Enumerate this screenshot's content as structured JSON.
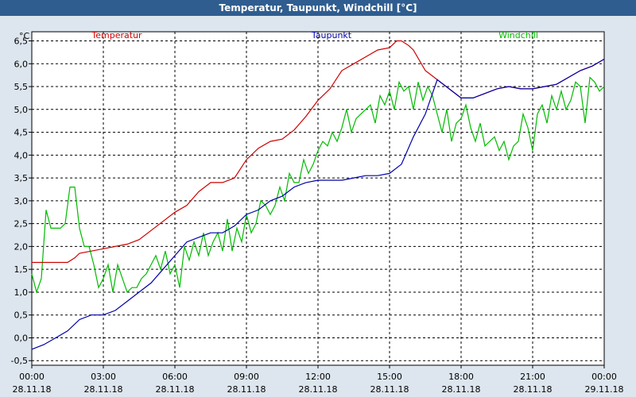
{
  "window": {
    "title": "Temperatur, Taupunkt, Windchill [°C]"
  },
  "chart_data": {
    "type": "line",
    "title": "Temperatur, Taupunkt, Windchill [°C]",
    "ylabel": "°C",
    "xlabel": "",
    "ylim": [
      -0.6,
      6.7
    ],
    "xlim": [
      0,
      24
    ],
    "grid": true,
    "legend": "top",
    "yticks": [
      "-0,5",
      "0,0",
      "0,5",
      "1,0",
      "1,5",
      "2,0",
      "2,5",
      "3,0",
      "3,5",
      "4,0",
      "4,5",
      "5,0",
      "5,5",
      "6,0",
      "6,5"
    ],
    "ytick_values": [
      -0.5,
      0,
      0.5,
      1,
      1.5,
      2,
      2.5,
      3,
      3.5,
      4,
      4.5,
      5,
      5.5,
      6,
      6.5
    ],
    "xticks": [
      {
        "time": "00:00",
        "date": "28.11.18",
        "hour": 0
      },
      {
        "time": "03:00",
        "date": "28.11.18",
        "hour": 3
      },
      {
        "time": "06:00",
        "date": "28.11.18",
        "hour": 6
      },
      {
        "time": "09:00",
        "date": "28.11.18",
        "hour": 9
      },
      {
        "time": "12:00",
        "date": "28.11.18",
        "hour": 12
      },
      {
        "time": "15:00",
        "date": "28.11.18",
        "hour": 15
      },
      {
        "time": "18:00",
        "date": "28.11.18",
        "hour": 18
      },
      {
        "time": "21:00",
        "date": "28.11.18",
        "hour": 21
      },
      {
        "time": "00:00",
        "date": "29.11.18",
        "hour": 24
      }
    ],
    "series": [
      {
        "name": "Temperatur",
        "color": "#cc0000",
        "x": [
          0,
          1,
          1.5,
          1.8,
          2,
          2.5,
          3,
          3.5,
          4,
          4.5,
          5,
          5.5,
          6,
          6.5,
          7,
          7.5,
          8,
          8.5,
          9,
          9.5,
          10,
          10.5,
          11,
          11.5,
          12,
          12.5,
          13,
          13.5,
          14,
          14.5,
          15,
          15.3,
          15.5,
          15.8,
          16,
          16.5,
          17,
          17.5,
          18,
          18.5,
          19,
          19.5,
          20,
          20.5,
          21,
          21.5,
          22,
          22.5,
          23,
          23.5,
          24
        ],
        "values": [
          1.65,
          1.65,
          1.65,
          1.75,
          1.85,
          1.9,
          1.95,
          2.0,
          2.05,
          2.15,
          2.35,
          2.55,
          2.75,
          2.9,
          3.2,
          3.4,
          3.4,
          3.5,
          3.9,
          4.15,
          4.3,
          4.35,
          4.55,
          4.85,
          5.2,
          5.45,
          5.85,
          6.0,
          6.15,
          6.3,
          6.35,
          6.5,
          6.5,
          6.4,
          6.3,
          5.85,
          5.65,
          5.45,
          5.25,
          5.25,
          5.35,
          5.45,
          5.5,
          5.45,
          5.45,
          5.5,
          5.55,
          5.7,
          5.85,
          5.95,
          6.1
        ]
      },
      {
        "name": "Taupunkt",
        "color": "#0000aa",
        "x": [
          0,
          0.5,
          1,
          1.5,
          2,
          2.5,
          3,
          3.5,
          4,
          4.5,
          5,
          5.5,
          6,
          6.5,
          7,
          7.5,
          8,
          8.5,
          9,
          9.5,
          10,
          10.5,
          11,
          11.5,
          12,
          12.5,
          13,
          13.5,
          14,
          14.5,
          15,
          15.5,
          16,
          16.5,
          17,
          17.5,
          18,
          18.5,
          19,
          19.5,
          20,
          20.5,
          21,
          21.5,
          22,
          22.5,
          23,
          23.5,
          24
        ],
        "values": [
          -0.25,
          -0.15,
          0.0,
          0.15,
          0.4,
          0.5,
          0.5,
          0.6,
          0.8,
          1.0,
          1.2,
          1.5,
          1.8,
          2.1,
          2.2,
          2.3,
          2.3,
          2.45,
          2.7,
          2.8,
          3.0,
          3.1,
          3.3,
          3.4,
          3.45,
          3.45,
          3.45,
          3.5,
          3.55,
          3.55,
          3.6,
          3.8,
          4.4,
          4.9,
          5.65,
          5.45,
          5.25,
          5.25,
          5.35,
          5.45,
          5.5,
          5.45,
          5.45,
          5.5,
          5.55,
          5.7,
          5.85,
          5.95,
          6.1
        ]
      },
      {
        "name": "Windchill",
        "color": "#00bb00",
        "x": [
          0,
          0.2,
          0.4,
          0.6,
          0.8,
          1,
          1.2,
          1.4,
          1.6,
          1.8,
          2,
          2.2,
          2.4,
          2.6,
          2.8,
          3,
          3.2,
          3.4,
          3.6,
          3.8,
          4,
          4.2,
          4.4,
          4.6,
          4.8,
          5,
          5.2,
          5.4,
          5.6,
          5.8,
          6,
          6.2,
          6.4,
          6.6,
          6.8,
          7,
          7.2,
          7.4,
          7.6,
          7.8,
          8,
          8.2,
          8.4,
          8.6,
          8.8,
          9,
          9.2,
          9.4,
          9.6,
          9.8,
          10,
          10.2,
          10.4,
          10.6,
          10.8,
          11,
          11.2,
          11.4,
          11.6,
          11.8,
          12,
          12.2,
          12.4,
          12.6,
          12.8,
          13,
          13.2,
          13.4,
          13.6,
          13.8,
          14,
          14.2,
          14.4,
          14.6,
          14.8,
          15,
          15.2,
          15.4,
          15.6,
          15.8,
          16,
          16.2,
          16.4,
          16.6,
          16.8,
          17,
          17.2,
          17.4,
          17.6,
          17.8,
          18,
          18.2,
          18.4,
          18.6,
          18.8,
          19,
          19.2,
          19.4,
          19.6,
          19.8,
          20,
          20.2,
          20.4,
          20.6,
          20.8,
          21,
          21.2,
          21.4,
          21.6,
          21.8,
          22,
          22.2,
          22.4,
          22.6,
          22.8,
          23,
          23.2,
          23.4,
          23.6,
          23.8,
          24
        ],
        "values": [
          1.4,
          1.0,
          1.3,
          2.8,
          2.4,
          2.4,
          2.4,
          2.5,
          3.3,
          3.3,
          2.4,
          2.0,
          2.0,
          1.6,
          1.1,
          1.3,
          1.6,
          1.0,
          1.6,
          1.3,
          1.0,
          1.1,
          1.1,
          1.3,
          1.4,
          1.6,
          1.8,
          1.5,
          1.9,
          1.4,
          1.6,
          1.1,
          2.0,
          1.7,
          2.1,
          1.8,
          2.3,
          1.8,
          2.1,
          2.3,
          1.9,
          2.6,
          1.9,
          2.4,
          2.1,
          2.7,
          2.3,
          2.5,
          3.0,
          2.9,
          2.7,
          2.9,
          3.3,
          3.0,
          3.6,
          3.4,
          3.4,
          3.9,
          3.6,
          3.8,
          4.1,
          4.3,
          4.2,
          4.5,
          4.3,
          4.6,
          5.0,
          4.5,
          4.8,
          4.9,
          5.0,
          5.1,
          4.7,
          5.3,
          5.1,
          5.4,
          5.0,
          5.6,
          5.4,
          5.5,
          5.0,
          5.6,
          5.2,
          5.5,
          5.3,
          4.9,
          4.5,
          5.0,
          4.3,
          4.7,
          4.8,
          5.1,
          4.6,
          4.3,
          4.7,
          4.2,
          4.3,
          4.4,
          4.1,
          4.3,
          3.9,
          4.2,
          4.3,
          4.9,
          4.6,
          4.1,
          4.9,
          5.1,
          4.7,
          5.3,
          5.0,
          5.4,
          5.0,
          5.2,
          5.6,
          5.5,
          4.7,
          5.7,
          5.6,
          5.4,
          5.5
        ]
      }
    ]
  }
}
